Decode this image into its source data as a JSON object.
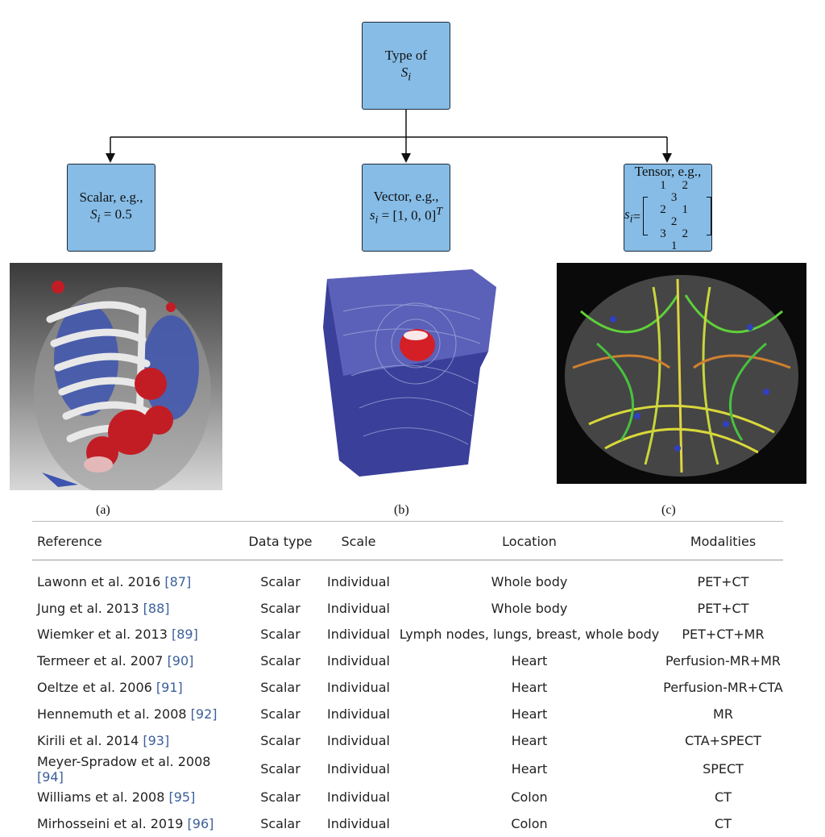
{
  "diagram": {
    "root": {
      "line1": "Type of",
      "symbol": "S",
      "sub": "i"
    },
    "scalar": {
      "line1": "Scalar, e.g.,",
      "symbol": "S",
      "sub": "i",
      "eq": " = 0.5"
    },
    "vector": {
      "line1": "Vector, e.g.,",
      "symbol": "s",
      "sub": "i",
      "eq": " = [1, 0, 0]",
      "sup": "T"
    },
    "tensor": {
      "line1": "Tensor, e.g.,",
      "symbol": "s",
      "sub": "i",
      "eq": " =",
      "matrix": [
        "1 2 3",
        "2 1 2",
        "3 2 1"
      ]
    }
  },
  "captions": {
    "a": "(a)",
    "b": "(b)",
    "c": "(c)"
  },
  "table": {
    "headers": [
      "Reference",
      "Data type",
      "Scale",
      "Location",
      "Modalities"
    ],
    "rows": [
      {
        "ref": "Lawonn et al. 2016 ",
        "cite": "[87]",
        "type": "Scalar",
        "scale": "Individual",
        "location": "Whole body",
        "modalities": "PET+CT"
      },
      {
        "ref": "Jung et al. 2013 ",
        "cite": "[88]",
        "type": "Scalar",
        "scale": "Individual",
        "location": "Whole body",
        "modalities": "PET+CT"
      },
      {
        "ref": "Wiemker et al. 2013 ",
        "cite": "[89]",
        "type": "Scalar",
        "scale": "Individual",
        "location": "Lymph nodes, lungs, breast, whole body",
        "modalities": "PET+CT+MR"
      },
      {
        "ref": "Termeer et al. 2007 ",
        "cite": "[90]",
        "type": "Scalar",
        "scale": "Individual",
        "location": "Heart",
        "modalities": "Perfusion-MR+MR"
      },
      {
        "ref": "Oeltze et al. 2006 ",
        "cite": "[91]",
        "type": "Scalar",
        "scale": "Individual",
        "location": "Heart",
        "modalities": "Perfusion-MR+CTA"
      },
      {
        "ref": "Hennemuth et al. 2008 ",
        "cite": "[92]",
        "type": "Scalar",
        "scale": "Individual",
        "location": "Heart",
        "modalities": "MR"
      },
      {
        "ref": "Kirili et al. 2014 ",
        "cite": "[93]",
        "type": "Scalar",
        "scale": "Individual",
        "location": "Heart",
        "modalities": "CTA+SPECT"
      },
      {
        "ref": "Meyer-Spradow et al. 2008 ",
        "cite": "[94]",
        "type": "Scalar",
        "scale": "Individual",
        "location": "Heart",
        "modalities": "SPECT"
      },
      {
        "ref": "Williams et al. 2008 ",
        "cite": "[95]",
        "type": "Scalar",
        "scale": "Individual",
        "location": "Colon",
        "modalities": "CT"
      },
      {
        "ref": "Mirhosseini et al. 2019 ",
        "cite": "[96]",
        "type": "Scalar",
        "scale": "Individual",
        "location": "Colon",
        "modalities": "CT"
      }
    ]
  },
  "colors": {
    "box_fill": "#86bce6",
    "citation": "#3b5f99"
  }
}
